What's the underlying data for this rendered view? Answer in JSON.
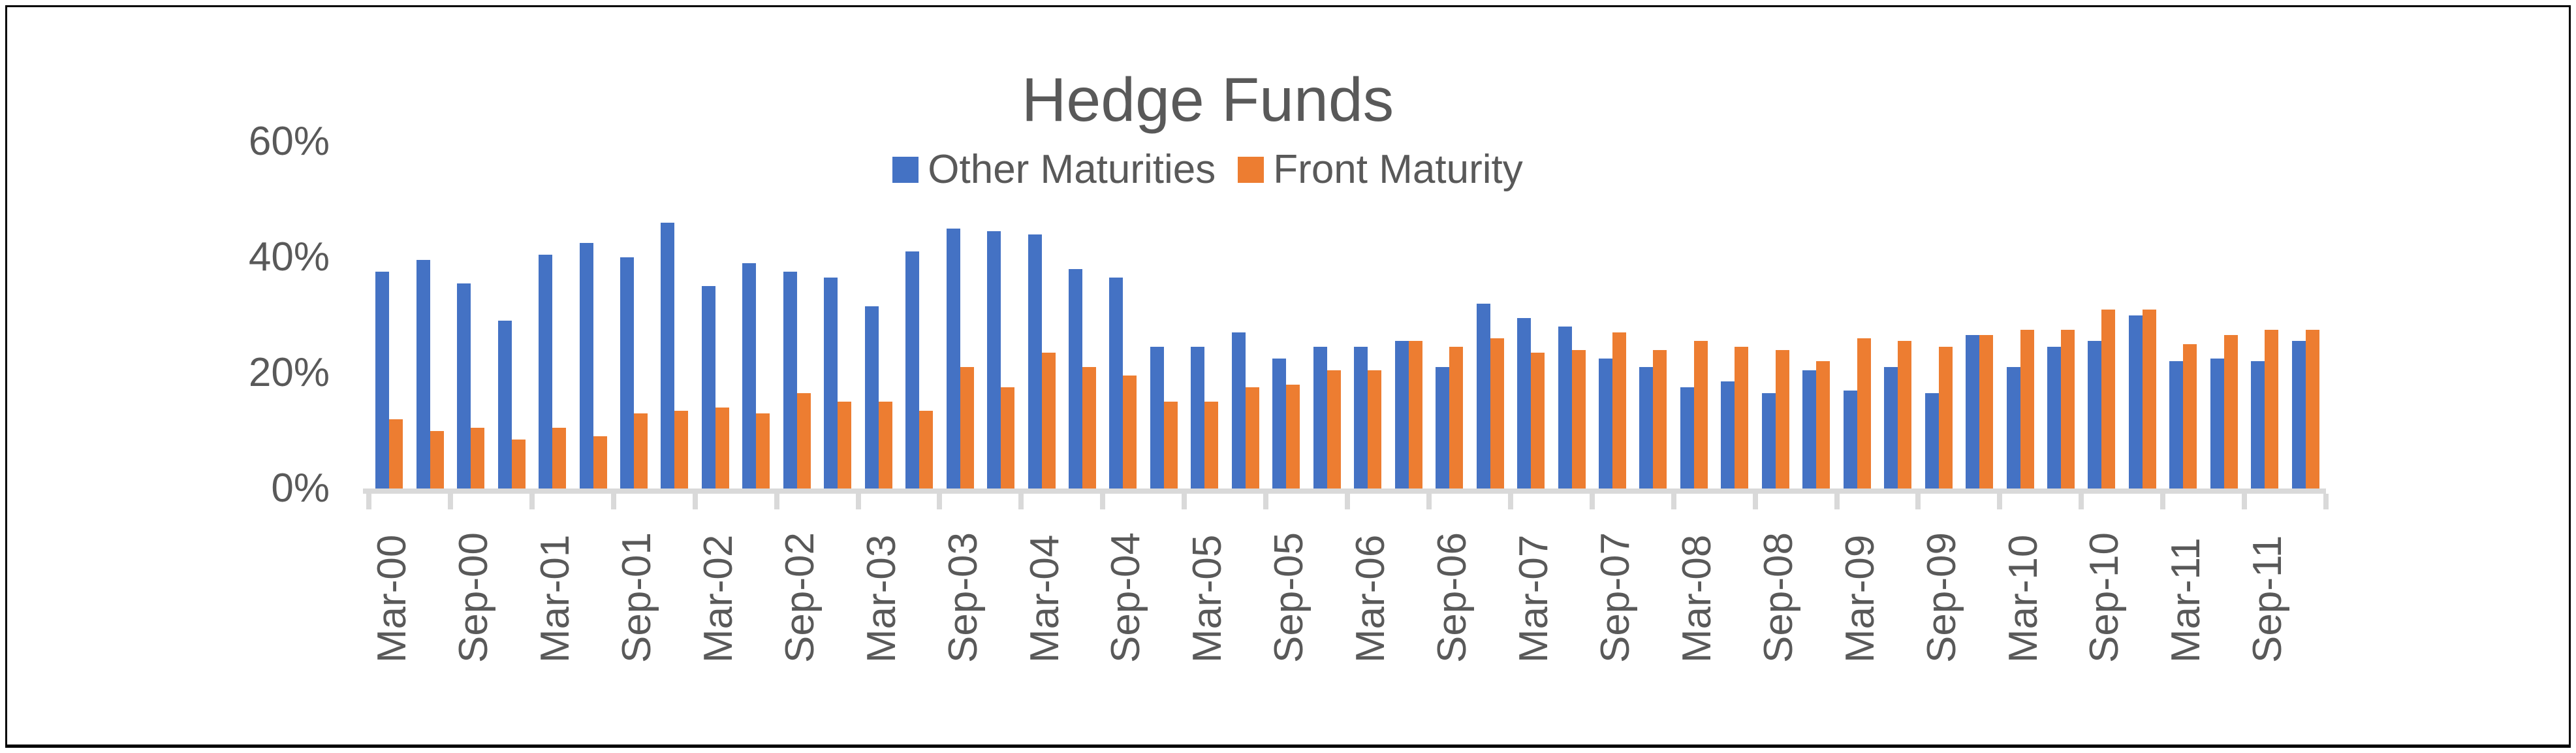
{
  "title": {
    "text": "Hedge Funds"
  },
  "legend": {
    "items": [
      {
        "label": "Other Maturities",
        "color": "#4472C4"
      },
      {
        "label": "Front Maturity",
        "color": "#ED7D31"
      }
    ]
  },
  "colors": {
    "background": "#FFFFFF",
    "frame_border": "#000000",
    "title_text": "#595959",
    "axis_text": "#595959",
    "axis_line": "#D9D9D9",
    "series_blue": "#4472C4",
    "series_orange": "#ED7D31"
  },
  "y_axis": {
    "ticks": [
      {
        "v": 0,
        "label": "0%"
      },
      {
        "v": 20,
        "label": "20%"
      },
      {
        "v": 40,
        "label": "40%"
      },
      {
        "v": 60,
        "label": "60%"
      }
    ]
  },
  "x_axis": {
    "visible_labels": [
      "Mar-00",
      "Sep-00",
      "Mar-01",
      "Sep-01",
      "Mar-02",
      "Sep-02",
      "Mar-03",
      "Sep-03",
      "Mar-04",
      "Sep-04",
      "Mar-05",
      "Sep-05",
      "Mar-06",
      "Sep-06",
      "Mar-07",
      "Sep-07",
      "Mar-08",
      "Sep-08",
      "Mar-09",
      "Sep-09",
      "Mar-10",
      "Sep-10",
      "Mar-11",
      "Sep-11"
    ]
  },
  "chart_data": {
    "type": "bar",
    "title": "Hedge Funds",
    "categories": [
      "Mar-00",
      "Jun-00",
      "Sep-00",
      "Dec-00",
      "Mar-01",
      "Jun-01",
      "Sep-01",
      "Dec-01",
      "Mar-02",
      "Jun-02",
      "Sep-02",
      "Dec-02",
      "Mar-03",
      "Jun-03",
      "Sep-03",
      "Dec-03",
      "Mar-04",
      "Jun-04",
      "Sep-04",
      "Dec-04",
      "Mar-05",
      "Jun-05",
      "Sep-05",
      "Dec-05",
      "Mar-06",
      "Jun-06",
      "Sep-06",
      "Dec-06",
      "Mar-07",
      "Jun-07",
      "Sep-07",
      "Dec-07",
      "Mar-08",
      "Jun-08",
      "Sep-08",
      "Dec-08",
      "Mar-09",
      "Jun-09",
      "Sep-09",
      "Dec-09",
      "Mar-10",
      "Jun-10",
      "Sep-10",
      "Dec-10",
      "Mar-11",
      "Jun-11",
      "Sep-11",
      "Dec-11"
    ],
    "series": [
      {
        "name": "Other Maturities",
        "color": "#4472C4",
        "values": [
          37.5,
          39.5,
          35.5,
          29,
          40.5,
          42.5,
          40,
          46,
          35,
          39,
          37.5,
          36.5,
          31.5,
          41,
          45,
          44.5,
          44,
          38,
          36.5,
          24.5,
          24.5,
          27,
          22.5,
          24.5,
          24.5,
          25.5,
          21,
          32,
          29.5,
          28,
          22.5,
          21,
          17.5,
          18.5,
          16.5,
          20.5,
          17,
          21,
          16.5,
          26.5,
          21,
          24.5,
          25.5,
          30,
          22,
          22.5,
          22,
          25.5
        ]
      },
      {
        "name": "Front Maturity",
        "color": "#ED7D31",
        "values": [
          12,
          10,
          10.5,
          8.5,
          10.5,
          9,
          13,
          13.5,
          14,
          13,
          16.5,
          15,
          15,
          13.5,
          21,
          17.5,
          23.5,
          21,
          19.5,
          15,
          15,
          17.5,
          18,
          20.5,
          20.5,
          25.5,
          24.5,
          26,
          23.5,
          24,
          27,
          24,
          25.5,
          24.5,
          24,
          22,
          26,
          25.5,
          24.5,
          26.5,
          27.5,
          27.5,
          31,
          31,
          25,
          26.5,
          27.5,
          27.5
        ]
      }
    ],
    "ylim": [
      0,
      60
    ],
    "y_tick_step": 20,
    "y_format": "percent",
    "x_label_every_n": 2,
    "x_label_rotation_deg": -90,
    "grid": false,
    "legend_position": "top-center"
  }
}
